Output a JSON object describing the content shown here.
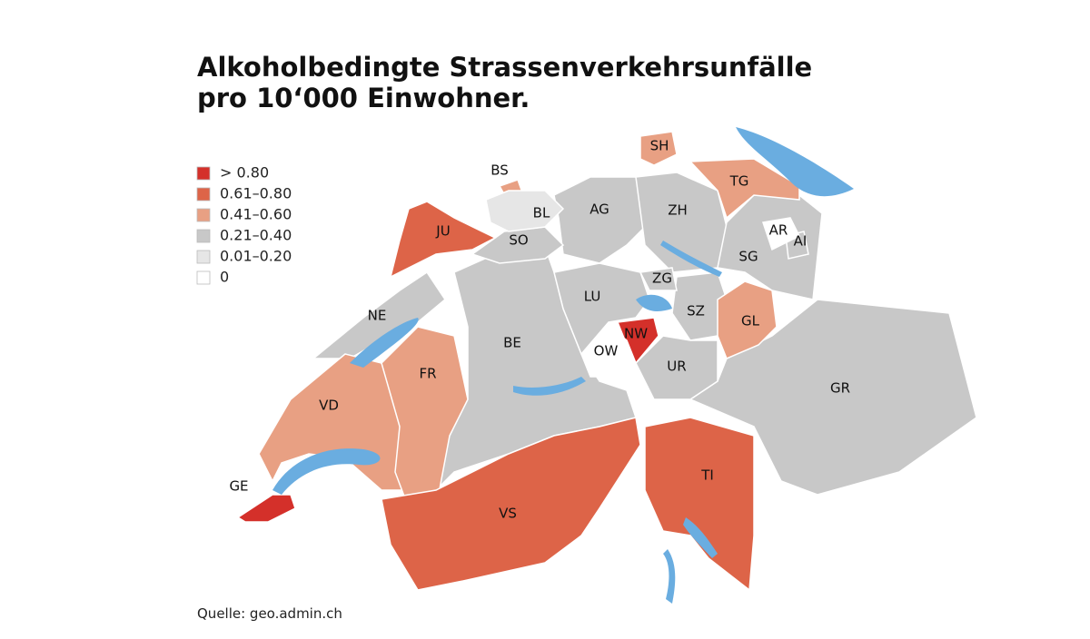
{
  "title_lines": [
    "Alkoholbedingte Strassenverkehrsunfälle",
    "pro 10‘000 Einwohner."
  ],
  "legend": [
    {
      "label": "> 0.80",
      "color": "#d4302a"
    },
    {
      "label": "0.61–0.80",
      "color": "#dd6448"
    },
    {
      "label": "0.41–0.60",
      "color": "#e8a083"
    },
    {
      "label": "0.21–0.40",
      "color": "#c8c8c8"
    },
    {
      "label": "0.01–0.20",
      "color": "#e6e6e6"
    },
    {
      "label": "0",
      "color": "#ffffff"
    }
  ],
  "regions": [
    {
      "label": "BE",
      "color": "#c8c8c8"
    },
    {
      "label": "GR",
      "color": "#c8c8c8"
    },
    {
      "label": "AG",
      "color": "#c8c8c8"
    },
    {
      "label": "ZH",
      "color": "#c8c8c8"
    },
    {
      "label": "SG",
      "color": "#c8c8c8"
    },
    {
      "label": "LU",
      "color": "#c8c8c8"
    },
    {
      "label": "SZ",
      "color": "#c8c8c8"
    },
    {
      "label": "ZG",
      "color": "#c8c8c8"
    },
    {
      "label": "UR",
      "color": "#c8c8c8"
    },
    {
      "label": "SO",
      "color": "#c8c8c8"
    },
    {
      "label": "NE",
      "color": "#c8c8c8"
    },
    {
      "label": "AI",
      "color": "#c8c8c8"
    },
    {
      "label": "VD",
      "color": "#e8a083"
    },
    {
      "label": "FR",
      "color": "#e8a083"
    },
    {
      "label": "SH",
      "color": "#e8a083"
    },
    {
      "label": "TG",
      "color": "#e8a083"
    },
    {
      "label": "GL",
      "color": "#e8a083"
    },
    {
      "label": "BS",
      "color": "#e8a083"
    },
    {
      "label": "JU",
      "color": "#dd6448"
    },
    {
      "label": "VS",
      "color": "#dd6448"
    },
    {
      "label": "TI",
      "color": "#dd6448"
    },
    {
      "label": "GE",
      "color": "#d4302a"
    },
    {
      "label": "NW",
      "color": "#d4302a"
    },
    {
      "label": "BL",
      "color": "#e6e6e6"
    },
    {
      "label": "OW",
      "color": "#ffffff"
    },
    {
      "label": "AR",
      "color": "#ffffff"
    }
  ],
  "source": "Quelle: geo.admin.ch"
}
